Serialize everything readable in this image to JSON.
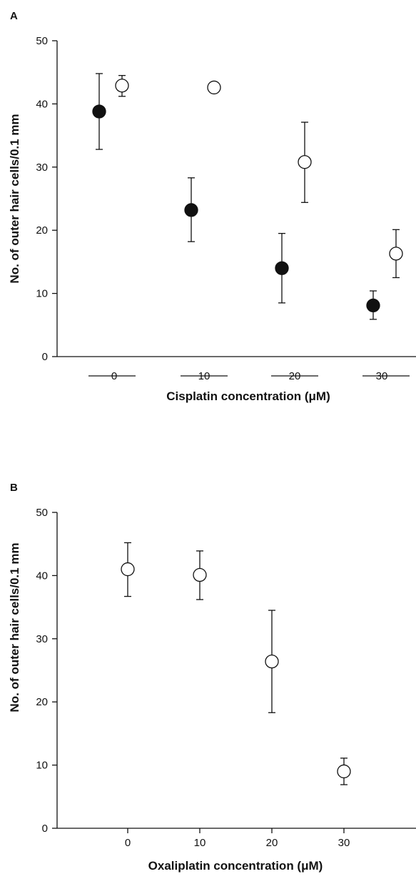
{
  "chart_data": [
    {
      "panel": "A",
      "type": "scatter",
      "xlabel": "Cisplatin concentration (μM)",
      "ylabel": "No. of outer hair cells/0.1 mm",
      "ylim": [
        0,
        50
      ],
      "yticks": [
        0,
        10,
        20,
        30,
        40,
        50
      ],
      "categories": [
        "0",
        "10",
        "20",
        "30"
      ],
      "grouped_categories": true,
      "series": [
        {
          "marker": "filled-circle",
          "values": [
            38.8,
            23.2,
            14.0,
            8.1
          ],
          "err_low": [
            32.8,
            18.2,
            8.5,
            5.9
          ],
          "err_high": [
            44.8,
            28.3,
            19.5,
            10.4
          ],
          "bars": "both"
        },
        {
          "marker": "open-circle",
          "values": [
            42.9,
            42.6,
            30.8,
            16.3
          ],
          "err_low": [
            41.2,
            null,
            24.4,
            12.5
          ],
          "err_high": [
            44.5,
            null,
            37.1,
            20.1
          ],
          "bars": "both"
        }
      ]
    },
    {
      "panel": "B",
      "type": "scatter",
      "xlabel": "Oxaliplatin concentration (μM)",
      "ylabel": "No. of outer hair cells/0.1 mm",
      "ylim": [
        0,
        50
      ],
      "yticks": [
        0,
        10,
        20,
        30,
        40,
        50
      ],
      "xticks": [
        0,
        10,
        20,
        30
      ],
      "grouped_categories": false,
      "series": [
        {
          "marker": "open-circle",
          "x": [
            0,
            10,
            20,
            30
          ],
          "values": [
            41.0,
            40.1,
            26.4,
            9.0
          ],
          "err_low": [
            36.7,
            36.2,
            18.3,
            6.9
          ],
          "err_high": [
            45.2,
            43.9,
            34.5,
            11.1
          ],
          "bars": "both"
        }
      ]
    }
  ]
}
